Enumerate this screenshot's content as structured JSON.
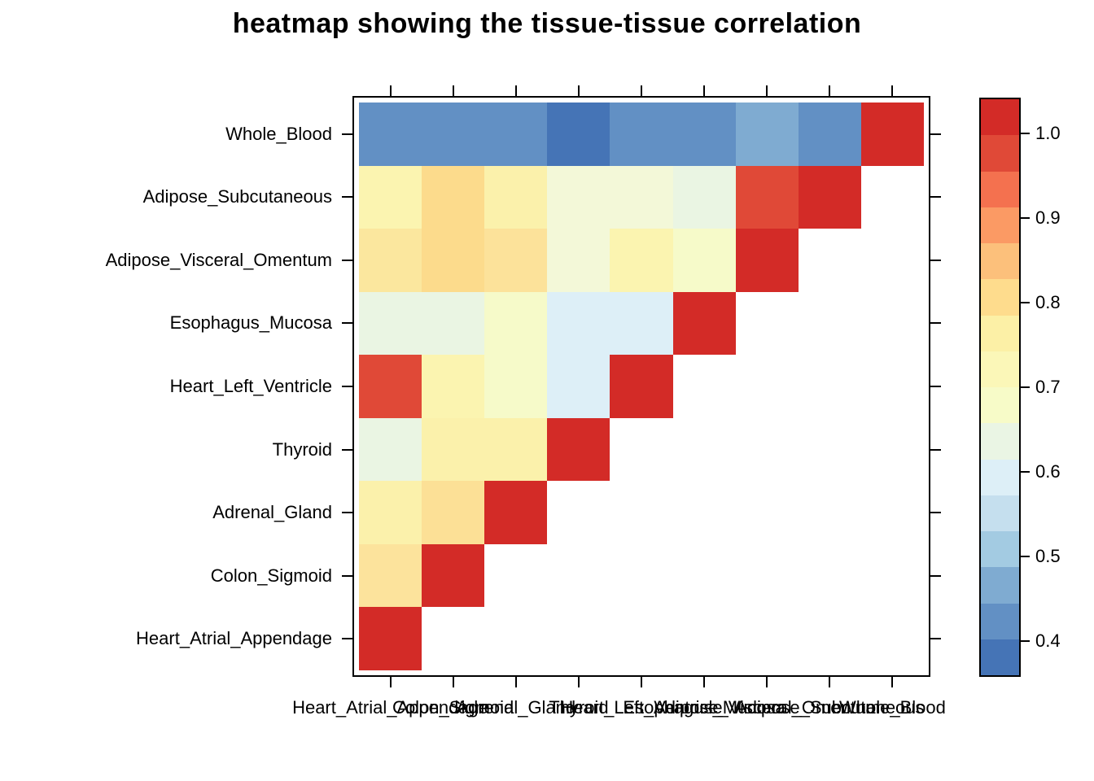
{
  "chart_data": {
    "type": "heatmap",
    "title": "heatmap showing the tissue-tissue correlation",
    "rows": [
      "Whole_Blood",
      "Adipose_Subcutaneous",
      "Adipose_Visceral_Omentum",
      "Esophagus_Mucosa",
      "Heart_Left_Ventricle",
      "Thyroid",
      "Adrenal_Gland",
      "Colon_Sigmoid",
      "Heart_Atrial_Appendage"
    ],
    "cols": [
      "Heart_Atrial_Appendage",
      "Colon_Sigmoid",
      "Adrenal_Gland",
      "Thyroid",
      "Heart_Left_Ventricle",
      "Esophagus_Mucosa",
      "Adipose_Visceral_Omentum",
      "Adipose_Subcutaneous",
      "Whole_Blood"
    ],
    "values": [
      [
        0.42,
        0.42,
        0.42,
        0.38,
        0.42,
        0.42,
        0.47,
        0.42,
        1.0
      ],
      [
        0.72,
        0.8,
        0.73,
        0.67,
        0.67,
        0.64,
        0.97,
        1.0
      ],
      [
        0.77,
        0.8,
        0.78,
        0.67,
        0.72,
        0.69,
        1.0
      ],
      [
        0.64,
        0.64,
        0.69,
        0.59,
        0.59,
        1.0
      ],
      [
        0.97,
        0.72,
        0.69,
        0.59,
        1.0
      ],
      [
        0.64,
        0.73,
        0.73,
        1.0
      ],
      [
        0.73,
        0.78,
        1.0
      ],
      [
        0.78,
        1.0
      ],
      [
        1.0
      ]
    ],
    "cell_colors": [
      [
        "#6290c4",
        "#6290c4",
        "#6290c4",
        "#4574b6",
        "#6290c4",
        "#6290c4",
        "#7fabd1",
        "#6290c4",
        "#d32b27"
      ],
      [
        "#fbf4b0",
        "#fcdb8c",
        "#fbf1ab",
        "#f3f8d8",
        "#f3f8d8",
        "#eaf5e3",
        "#e04937",
        "#d32b27"
      ],
      [
        "#fbe79e",
        "#fcdb8c",
        "#fce29a",
        "#f3f8d8",
        "#fbf4b0",
        "#f6fac9",
        "#d32b27"
      ],
      [
        "#eaf5e3",
        "#eaf5e3",
        "#f6fac9",
        "#ddeff7",
        "#ddeff7",
        "#d32b27"
      ],
      [
        "#e04937",
        "#fbf4b0",
        "#f6fac9",
        "#ddeff7",
        "#d32b27"
      ],
      [
        "#eaf5e3",
        "#fbf1ab",
        "#fbf1ab",
        "#d32b27"
      ],
      [
        "#fbf1ab",
        "#fce096",
        "#d32b27"
      ],
      [
        "#fce39c",
        "#d32b27"
      ],
      [
        "#d32b27"
      ]
    ],
    "diagonal_color": "#d32b27",
    "colorbar": {
      "domain": [
        0.36,
        1.04
      ],
      "tick_values": [
        1.0,
        0.9,
        0.8,
        0.7,
        0.6,
        0.5,
        0.4
      ],
      "tick_labels": [
        "1.0",
        "0.9",
        "0.8",
        "0.7",
        "0.6",
        "0.5",
        "0.4"
      ],
      "palette_low_to_high": [
        "#4574b6",
        "#6290c4",
        "#7fabd1",
        "#a3cbe2",
        "#c5dfee",
        "#ddeff7",
        "#eaf5e4",
        "#f7fbc8",
        "#fbf7b8",
        "#fcf0a6",
        "#fedc8d",
        "#fcc07b",
        "#fb9a64",
        "#f4714f",
        "#e04937",
        "#d32b27"
      ]
    }
  }
}
